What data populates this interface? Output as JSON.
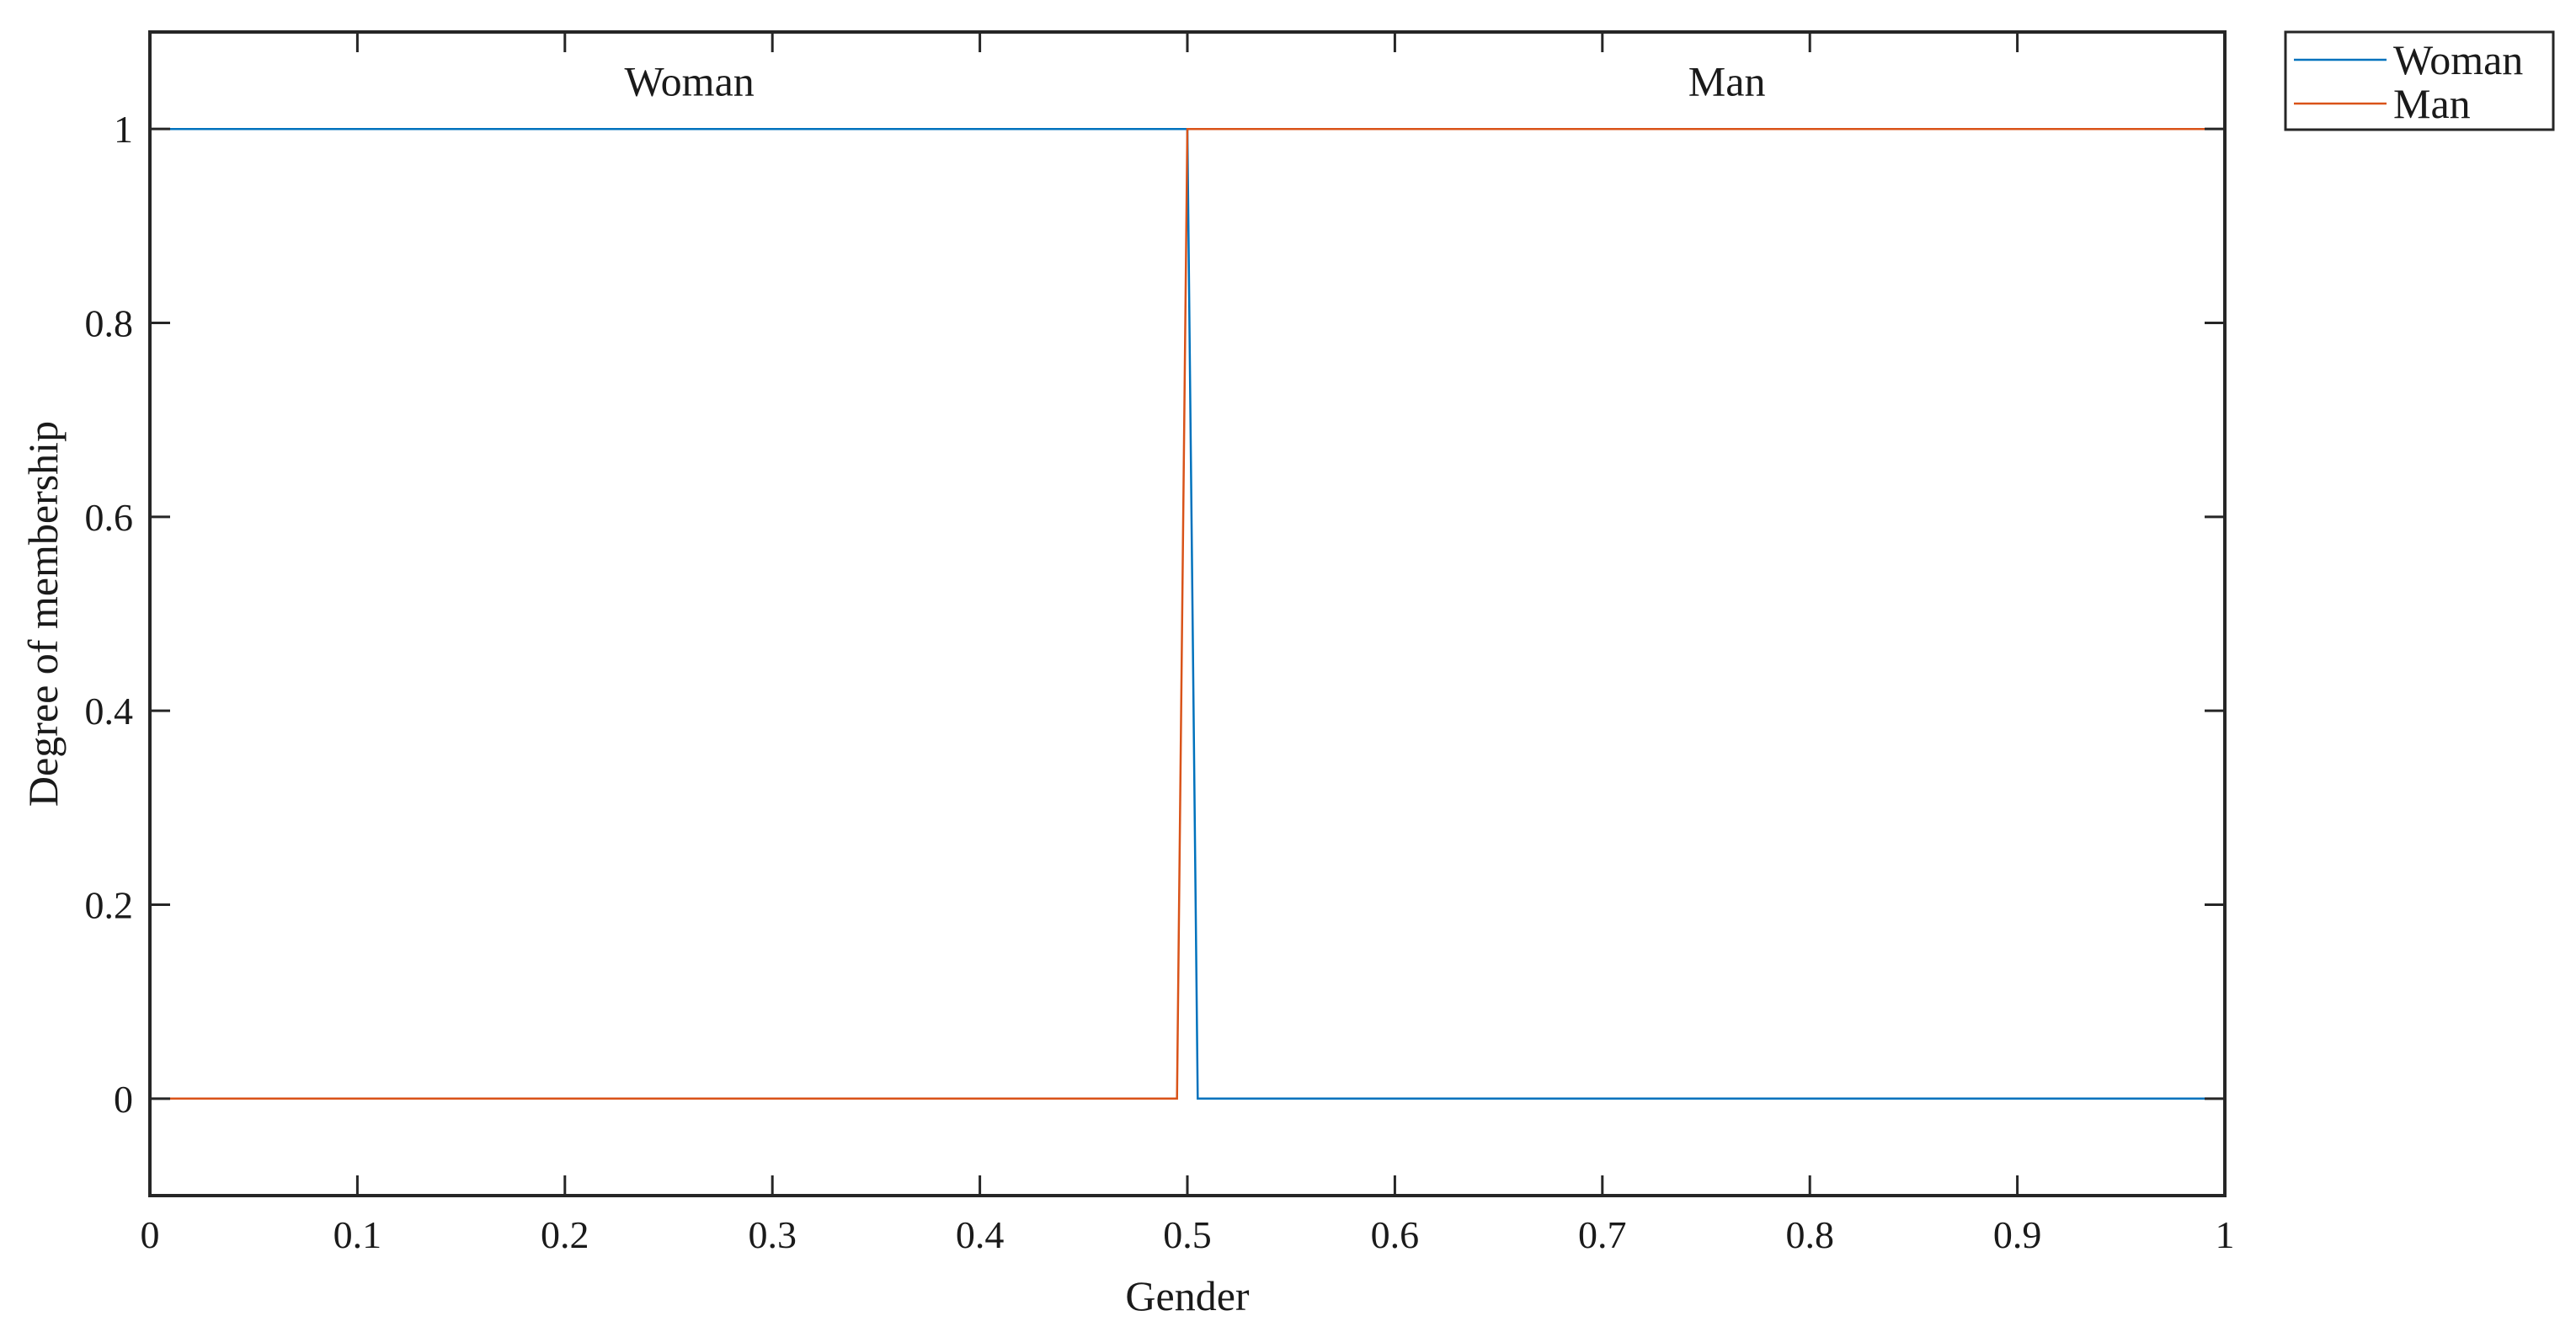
{
  "chart_data": {
    "type": "line",
    "title": "",
    "xlabel": "Gender",
    "ylabel": "Degree of membership",
    "xlim": [
      0,
      1
    ],
    "ylim": [
      -0.1,
      1.1
    ],
    "x_ticks": [
      0,
      0.1,
      0.2,
      0.3,
      0.4,
      0.5,
      0.6,
      0.7,
      0.8,
      0.9,
      1
    ],
    "x_tick_labels": [
      "0",
      "0.1",
      "0.2",
      "0.3",
      "0.4",
      "0.5",
      "0.6",
      "0.7",
      "0.8",
      "0.9",
      "1"
    ],
    "y_ticks": [
      0,
      0.2,
      0.4,
      0.6,
      0.8,
      1
    ],
    "y_tick_labels": [
      "0",
      "0.2",
      "0.4",
      "0.6",
      "0.8",
      "1"
    ],
    "grid": false,
    "legend_position": "outside-top-right",
    "annotations": [
      {
        "text": "Woman",
        "x": 0.26,
        "y": 1.05
      },
      {
        "text": "Man",
        "x": 0.76,
        "y": 1.05
      }
    ],
    "series": [
      {
        "name": "Woman",
        "color": "#0072BD",
        "x": [
          0,
          0.495,
          0.5,
          0.505,
          1
        ],
        "y": [
          1,
          1,
          1,
          0,
          0
        ]
      },
      {
        "name": "Man",
        "color": "#D95319",
        "x": [
          0,
          0.495,
          0.5,
          0.505,
          1
        ],
        "y": [
          0,
          0,
          1,
          1,
          1
        ]
      }
    ]
  }
}
